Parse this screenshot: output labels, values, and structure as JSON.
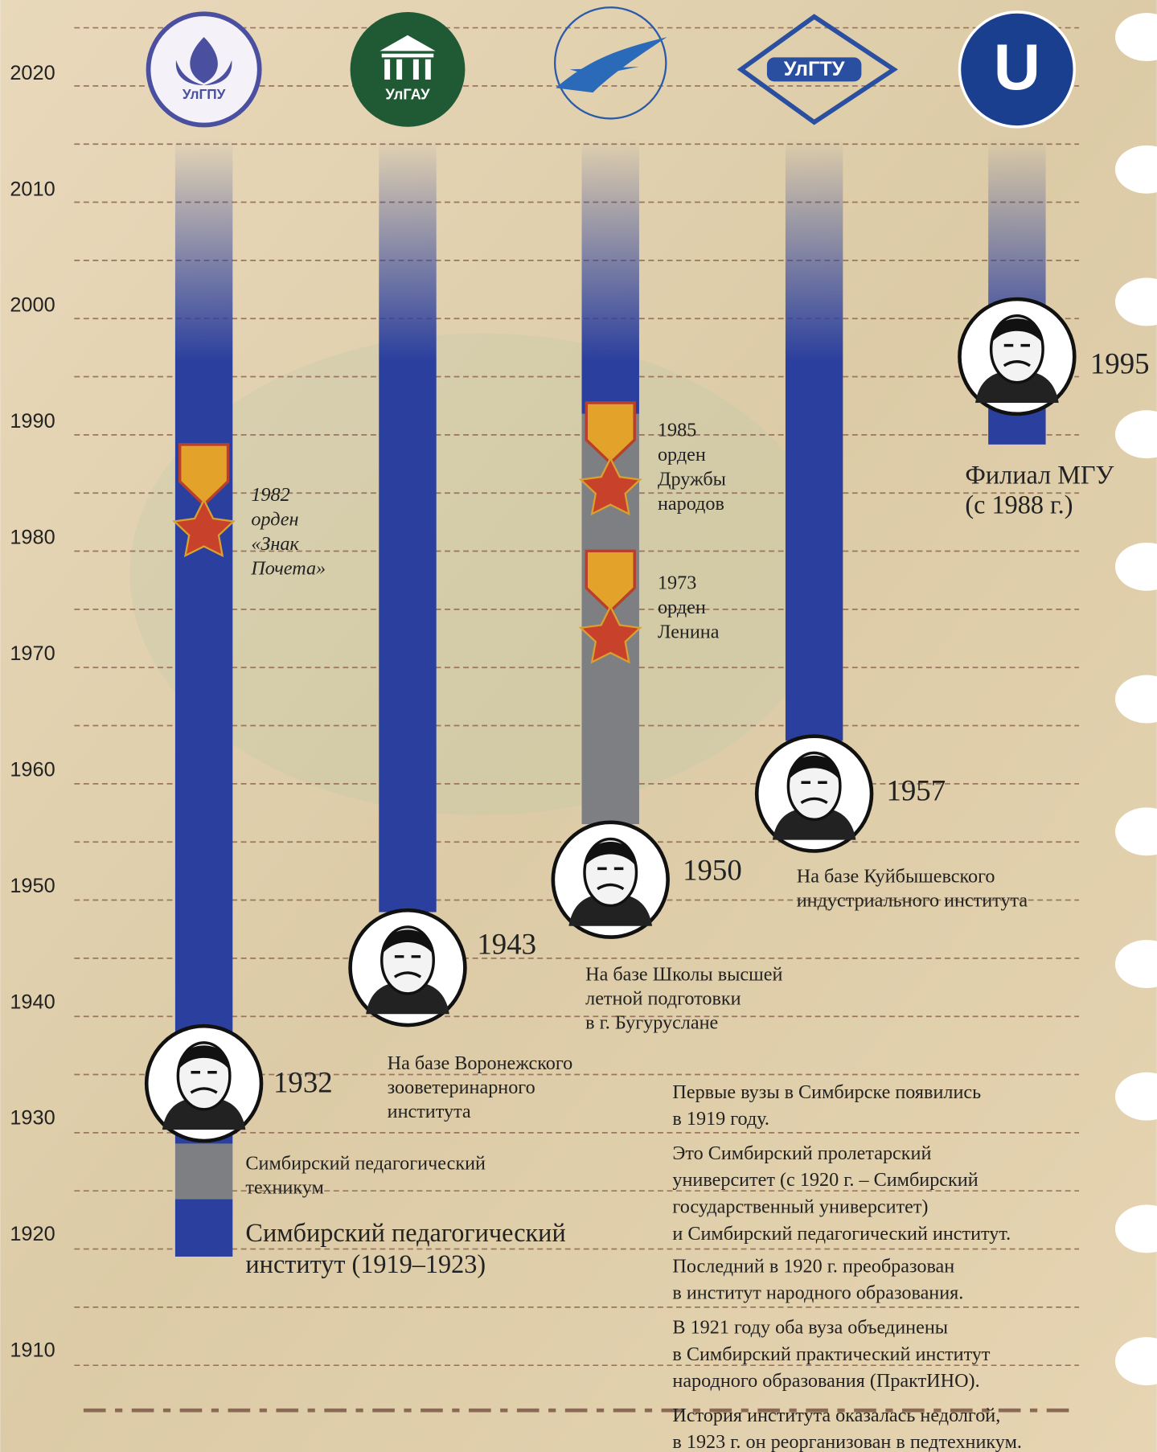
{
  "axis": {
    "years": [
      2020,
      2010,
      2000,
      1990,
      1980,
      1970,
      1960,
      1950,
      1940,
      1930,
      1920,
      1910
    ]
  },
  "columns": [
    {
      "logo": "УлГПУ",
      "year": 1932,
      "awards": [
        {
          "year": 1982,
          "lines": [
            "орден",
            "«Знак",
            "Почета»"
          ]
        }
      ],
      "captions": [
        [
          "Симбирский педагогический",
          "техникум"
        ],
        [
          "Симбирский педагогический",
          "институт (1919–1923)"
        ]
      ]
    },
    {
      "logo": "УлГАУ",
      "year": 1943,
      "captions": [
        [
          "На базе Воронежского",
          "зооветеринарного",
          "института"
        ]
      ]
    },
    {
      "year": 1950,
      "awards": [
        {
          "year": 1985,
          "lines": [
            "орден",
            "Дружбы",
            "народов"
          ]
        },
        {
          "year": 1973,
          "lines": [
            "орден",
            "Ленина"
          ]
        }
      ],
      "captions": [
        [
          "На базе Школы высшей",
          "летной подготовки",
          "в г. Бугуруслане"
        ]
      ]
    },
    {
      "logo": "УлГТУ",
      "year": 1957,
      "captions": [
        [
          "На базе Куйбышевского",
          "индустриального института"
        ]
      ]
    },
    {
      "logo": "U",
      "year": 1995,
      "captions": [
        [
          "Филиал МГУ",
          "(с 1988 г.)"
        ]
      ]
    }
  ],
  "notes": [
    [
      "Первые вузы в Симбирске появились",
      "в 1919 году."
    ],
    [
      "Это Симбирский пролетарский",
      "университет (с 1920 г. – Симбирский",
      "государственный университет)",
      "и Симбирский педагогический институт."
    ],
    [
      "Последний в 1920 г. преобразован",
      "в институт народного образования."
    ],
    [
      "В 1921 году оба вуза объединены",
      "в Симбирский практический институт",
      "народного образования (ПрактИНО)."
    ],
    [
      "История института оказалась недолгой,",
      "в 1923 г. он реорганизован в педтехникум."
    ]
  ]
}
